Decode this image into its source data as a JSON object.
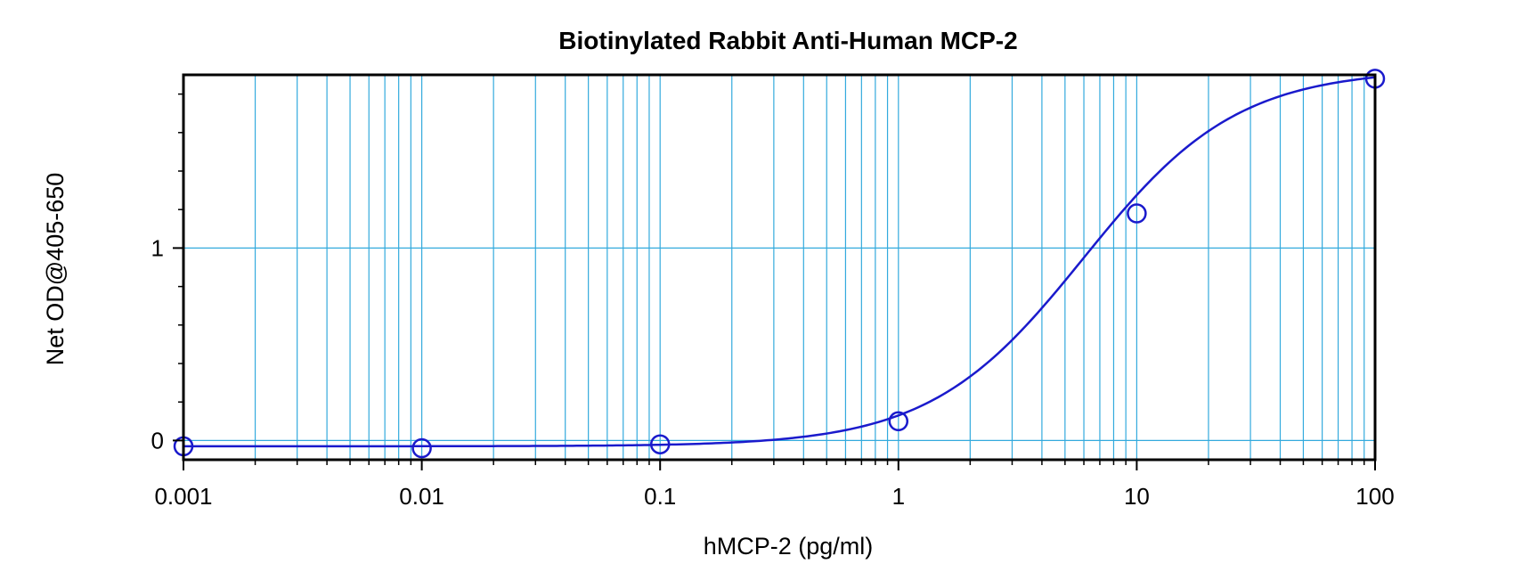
{
  "chart_data": {
    "type": "scatter",
    "title": "Biotinylated Rabbit Anti-Human MCP-2",
    "xlabel": "hMCP-2 (pg/ml)",
    "ylabel": "Net OD@405-650",
    "xscale": "log",
    "xlim": [
      0.001,
      100
    ],
    "ylim": [
      -0.1,
      1.9
    ],
    "x_ticks": [
      0.001,
      0.01,
      0.1,
      1,
      10,
      100
    ],
    "x_tick_labels": [
      "0.001",
      "0.01",
      "0.1",
      "1",
      "10",
      "100"
    ],
    "y_ticks": [
      0,
      1
    ],
    "y_tick_labels": [
      "0",
      "1"
    ],
    "grid": true,
    "colors": {
      "grid": "#33aadd",
      "series": "#1a1acc",
      "frame": "#000000"
    },
    "series": [
      {
        "points": [
          {
            "x": 0.001,
            "y": -0.03
          },
          {
            "x": 0.01,
            "y": -0.04
          },
          {
            "x": 0.1,
            "y": -0.02
          },
          {
            "x": 1,
            "y": 0.1
          },
          {
            "x": 10,
            "y": 1.18
          },
          {
            "x": 100,
            "y": 1.88
          }
        ],
        "fit": {
          "type": "4PL",
          "a": -0.03,
          "b": 1.35,
          "c": 6.0,
          "d": 1.93
        }
      }
    ]
  }
}
